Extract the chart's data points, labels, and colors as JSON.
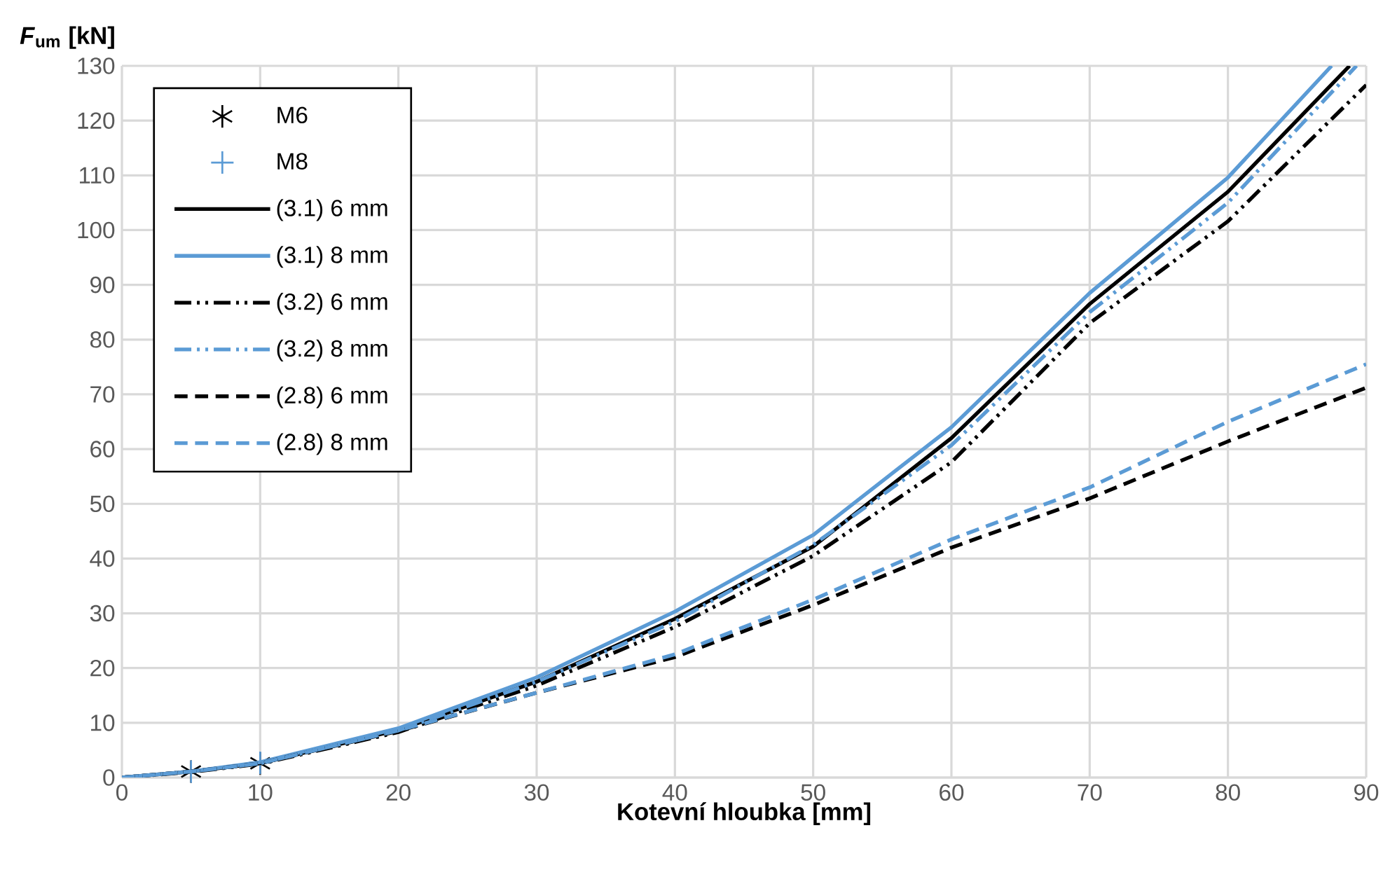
{
  "chart_data": {
    "type": "line",
    "xlabel": "Kotevní hloubka [mm]",
    "ylabel": "*F*$_{um}$ [kN]",
    "xlim": [
      0,
      90
    ],
    "ylim": [
      0,
      130
    ],
    "xticks": [
      0,
      10,
      20,
      30,
      40,
      50,
      60,
      70,
      80,
      90
    ],
    "yticks": [
      0,
      10,
      20,
      30,
      40,
      50,
      60,
      70,
      80,
      90,
      100,
      110,
      120,
      130
    ],
    "grid": true,
    "legend": "top left",
    "series": [
      {
        "name": "M6",
        "type": "scatter",
        "marker": "cross",
        "color": "#000000",
        "x": [
          5,
          10
        ],
        "values": [
          1.1,
          2.6
        ]
      },
      {
        "name": "M8",
        "type": "scatter",
        "color": "#5b9bd5",
        "x": [
          5,
          10
        ],
        "values": [
          1.1,
          2.7
        ]
      },
      {
        "name": "(3.1) 6 mm",
        "type": "line",
        "line_style": "solid",
        "color": "#000000",
        "x": [
          0,
          5,
          10,
          20,
          30,
          40,
          50,
          60,
          70,
          80,
          88.8
        ],
        "values": [
          0,
          1.1,
          2.6,
          8.7,
          17.5,
          29,
          42.2,
          62,
          86.5,
          107,
          130
        ]
      },
      {
        "name": "(3.1) 8 mm",
        "type": "line",
        "line_style": "solid",
        "color": "#5b9bd5",
        "x": [
          0,
          5,
          10,
          20,
          30,
          40,
          50,
          60,
          70,
          80,
          87.5
        ],
        "values": [
          0,
          1.1,
          2.8,
          9,
          18.3,
          30.3,
          44.3,
          64,
          88.5,
          109.6,
          130
        ]
      },
      {
        "name": "(3.2) 6 mm",
        "type": "line",
        "line_style": "dashdotdotted",
        "color": "#000000",
        "x": [
          0,
          5,
          10,
          20,
          30,
          40,
          50,
          60,
          70,
          80,
          90
        ],
        "values": [
          0,
          1,
          2.5,
          8.3,
          16.8,
          27.5,
          40.5,
          57.6,
          83,
          101.6,
          126.5
        ]
      },
      {
        "name": "(3.2) 8 mm",
        "type": "line",
        "line_style": "dashdotdotted",
        "color": "#5b9bd5",
        "x": [
          0,
          5,
          10,
          20,
          30,
          40,
          50,
          60,
          70,
          80,
          89.3
        ],
        "values": [
          0,
          1.1,
          2.6,
          8.6,
          17.5,
          28.5,
          42.5,
          60.7,
          85,
          105,
          130
        ]
      },
      {
        "name": "(2.8) 6 mm",
        "type": "line",
        "line_style": "dashed",
        "color": "#000000",
        "x": [
          0,
          5,
          10,
          20,
          30,
          40,
          50,
          60,
          70,
          80,
          90
        ],
        "values": [
          0,
          1.1,
          2.6,
          8.5,
          15.5,
          22,
          31.5,
          42,
          51,
          61.4,
          71.2
        ]
      },
      {
        "name": "(2.8) 8 mm",
        "type": "line",
        "line_style": "dashed",
        "color": "#5b9bd5",
        "x": [
          0,
          5,
          10,
          20,
          30,
          40,
          50,
          60,
          70,
          80,
          90
        ],
        "values": [
          0,
          1.1,
          2.6,
          8.6,
          15.5,
          22.5,
          32.5,
          43.5,
          53,
          65,
          75.5
        ]
      }
    ]
  }
}
